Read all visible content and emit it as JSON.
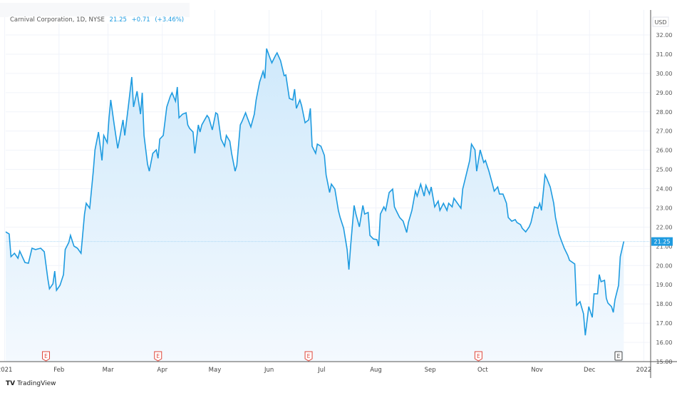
{
  "header": {
    "symbol": "Carnival Corporation, 1D, NYSE",
    "last": "21.25",
    "change": "+0.71",
    "change_pct": "(+3.46%)"
  },
  "brand": {
    "logo": "TV",
    "name": "TradingView"
  },
  "colors": {
    "line": "#1e9be0",
    "fill_top": "#cfe9fb",
    "fill_bottom": "#f4f9fe",
    "earnings": "#e0463a",
    "earnings_upcoming": "#444444",
    "price_label_bg": "#1e9be0"
  },
  "chart_data": {
    "type": "area",
    "title": "",
    "currency": "USD",
    "ylim": [
      15,
      32
    ],
    "yticks": [
      "15.00",
      "16.00",
      "17.00",
      "18.00",
      "19.00",
      "20.00",
      "21.00",
      "22.00",
      "23.00",
      "24.00",
      "25.00",
      "26.00",
      "27.00",
      "28.00",
      "29.00",
      "30.00",
      "31.00",
      "32.00"
    ],
    "xticks": [
      {
        "label": "2021",
        "date": "2021-01-01"
      },
      {
        "label": "Feb",
        "date": "2021-02-01"
      },
      {
        "label": "Mar",
        "date": "2021-03-01"
      },
      {
        "label": "Apr",
        "date": "2021-04-01"
      },
      {
        "label": "May",
        "date": "2021-05-01"
      },
      {
        "label": "Jun",
        "date": "2021-06-01"
      },
      {
        "label": "Jul",
        "date": "2021-07-01"
      },
      {
        "label": "Aug",
        "date": "2021-08-01"
      },
      {
        "label": "Sep",
        "date": "2021-09-01"
      },
      {
        "label": "Oct",
        "date": "2021-10-01"
      },
      {
        "label": "Nov",
        "date": "2021-11-01"
      },
      {
        "label": "Dec",
        "date": "2021-12-01"
      },
      {
        "label": "2022",
        "date": "2022-01-01"
      }
    ],
    "last_price_label": "21.25",
    "grid": true,
    "earnings_markers": [
      {
        "label": "E",
        "date": "2021-01-27",
        "status": "reported"
      },
      {
        "label": "E",
        "date": "2021-04-01",
        "status": "reported"
      },
      {
        "label": "E",
        "date": "2021-06-26",
        "status": "reported"
      },
      {
        "label": "E",
        "date": "2021-10-01",
        "status": "reported"
      },
      {
        "label": "E",
        "date": "2021-12-20",
        "status": "upcoming"
      }
    ],
    "series": [
      {
        "x": [
          "2021-01-04",
          "2021-01-06",
          "2021-01-07",
          "2021-01-09",
          "2021-01-11",
          "2021-01-12",
          "2021-01-15",
          "2021-01-17",
          "2021-01-19",
          "2021-01-21",
          "2021-01-24",
          "2021-01-26",
          "2021-01-28",
          "2021-01-29",
          "2021-01-31",
          "2021-02-01",
          "2021-02-02",
          "2021-02-04",
          "2021-02-06",
          "2021-02-07",
          "2021-02-09",
          "2021-02-10",
          "2021-02-12",
          "2021-02-14",
          "2021-02-16",
          "2021-02-18",
          "2021-02-19",
          "2021-02-21",
          "2021-02-23",
          "2021-02-24",
          "2021-02-26",
          "2021-02-28",
          "2021-03-01",
          "2021-03-03",
          "2021-03-04",
          "2021-03-05",
          "2021-03-07",
          "2021-03-09",
          "2021-03-10",
          "2021-03-12",
          "2021-03-13",
          "2021-03-15",
          "2021-03-17",
          "2021-03-18",
          "2021-03-20",
          "2021-03-22",
          "2021-03-23",
          "2021-03-24",
          "2021-03-26",
          "2021-03-27",
          "2021-03-29",
          "2021-03-31",
          "2021-04-01",
          "2021-04-02",
          "2021-04-04",
          "2021-04-06",
          "2021-04-08",
          "2021-04-09",
          "2021-04-11",
          "2021-04-12",
          "2021-04-13",
          "2021-04-15",
          "2021-04-17",
          "2021-04-18",
          "2021-04-19",
          "2021-04-21",
          "2021-04-22",
          "2021-04-24",
          "2021-04-25",
          "2021-04-26",
          "2021-04-29",
          "2021-04-30",
          "2021-05-02",
          "2021-05-04",
          "2021-05-05",
          "2021-05-07",
          "2021-05-09",
          "2021-05-10",
          "2021-05-12",
          "2021-05-13",
          "2021-05-15",
          "2021-05-16",
          "2021-05-18",
          "2021-05-19",
          "2021-05-21",
          "2021-05-22",
          "2021-05-24",
          "2021-05-26",
          "2021-05-27",
          "2021-05-29",
          "2021-05-31",
          "2021-06-01",
          "2021-06-02",
          "2021-06-04",
          "2021-06-05",
          "2021-06-07",
          "2021-06-08",
          "2021-06-10",
          "2021-06-12",
          "2021-06-13",
          "2021-06-15",
          "2021-06-17",
          "2021-06-18",
          "2021-06-19",
          "2021-06-21",
          "2021-06-22",
          "2021-06-24",
          "2021-06-26",
          "2021-06-27",
          "2021-06-28",
          "2021-06-30",
          "2021-07-01",
          "2021-07-03",
          "2021-07-05",
          "2021-07-06",
          "2021-07-08",
          "2021-07-09",
          "2021-07-11",
          "2021-07-13",
          "2021-07-14",
          "2021-07-16",
          "2021-07-18",
          "2021-07-19",
          "2021-07-20",
          "2021-07-22",
          "2021-07-23",
          "2021-07-25",
          "2021-07-27",
          "2021-07-28",
          "2021-07-30",
          "2021-07-31",
          "2021-08-02",
          "2021-08-04",
          "2021-08-05",
          "2021-08-06",
          "2021-08-08",
          "2021-08-09",
          "2021-08-11",
          "2021-08-13",
          "2021-08-14",
          "2021-08-16",
          "2021-08-17",
          "2021-08-19",
          "2021-08-21",
          "2021-08-22",
          "2021-08-24",
          "2021-08-26",
          "2021-08-27",
          "2021-08-29",
          "2021-08-31",
          "2021-09-01",
          "2021-09-03",
          "2021-09-04",
          "2021-09-06",
          "2021-09-08",
          "2021-09-09",
          "2021-09-11",
          "2021-09-13",
          "2021-09-14",
          "2021-09-16",
          "2021-09-17",
          "2021-09-19",
          "2021-09-21",
          "2021-09-22",
          "2021-09-24",
          "2021-09-26",
          "2021-09-27",
          "2021-09-29",
          "2021-09-30",
          "2021-10-02",
          "2021-10-04",
          "2021-10-05",
          "2021-10-07",
          "2021-10-09",
          "2021-10-10",
          "2021-10-12",
          "2021-10-13",
          "2021-10-15",
          "2021-10-17",
          "2021-10-18",
          "2021-10-20",
          "2021-10-22",
          "2021-10-23",
          "2021-10-25",
          "2021-10-26",
          "2021-10-28",
          "2021-10-30",
          "2021-10-31",
          "2021-11-02",
          "2021-11-04",
          "2021-11-05",
          "2021-11-06",
          "2021-11-08",
          "2021-11-09",
          "2021-11-11",
          "2021-11-13",
          "2021-11-14",
          "2021-11-16",
          "2021-11-17",
          "2021-11-19",
          "2021-11-21",
          "2021-11-22",
          "2021-11-25",
          "2021-11-26",
          "2021-11-28",
          "2021-11-30",
          "2021-12-01",
          "2021-12-03",
          "2021-12-05",
          "2021-12-06",
          "2021-12-08",
          "2021-12-09",
          "2021-12-10",
          "2021-12-12",
          "2021-12-13",
          "2021-12-14",
          "2021-12-16",
          "2021-12-17",
          "2021-12-18",
          "2021-12-20",
          "2021-12-21",
          "2021-12-23"
        ],
        "y": [
          21.75,
          21.64,
          20.46,
          20.64,
          20.38,
          20.75,
          20.16,
          20.12,
          20.9,
          20.83,
          20.9,
          20.72,
          19.34,
          18.79,
          19.05,
          19.71,
          18.71,
          18.97,
          19.53,
          20.83,
          21.2,
          21.57,
          21.01,
          20.9,
          20.64,
          22.68,
          23.24,
          22.98,
          24.91,
          26.02,
          26.95,
          25.47,
          26.77,
          26.39,
          27.69,
          28.62,
          27.32,
          26.1,
          26.58,
          27.58,
          26.77,
          28.25,
          29.81,
          28.25,
          29.07,
          27.88,
          28.99,
          26.77,
          25.28,
          24.91,
          25.84,
          26.02,
          25.58,
          26.58,
          26.77,
          28.25,
          28.81,
          28.99,
          28.55,
          29.29,
          27.69,
          27.88,
          27.95,
          27.32,
          27.14,
          26.95,
          25.84,
          27.32,
          26.95,
          27.32,
          27.81,
          27.69,
          27.06,
          27.95,
          27.88,
          26.58,
          26.21,
          26.77,
          26.47,
          25.84,
          24.91,
          25.21,
          27.32,
          27.51,
          27.95,
          27.69,
          27.21,
          27.88,
          28.62,
          29.55,
          30.11,
          29.74,
          31.29,
          30.78,
          30.55,
          30.92,
          31.07,
          30.66,
          29.88,
          29.92,
          28.7,
          28.62,
          29.18,
          28.18,
          28.62,
          28.33,
          27.43,
          27.58,
          28.18,
          26.21,
          25.84,
          26.32,
          26.21,
          25.73,
          24.72,
          23.8,
          24.24,
          23.98,
          22.87,
          22.5,
          21.94,
          20.83,
          19.79,
          21.01,
          23.13,
          22.68,
          22.01,
          23.13,
          22.68,
          22.76,
          21.57,
          21.38,
          21.35,
          21.01,
          22.68,
          23.05,
          22.87,
          23.8,
          23.98,
          23.05,
          22.68,
          22.5,
          22.31,
          21.72,
          22.24,
          22.87,
          23.87,
          23.61,
          24.24,
          23.61,
          24.17,
          23.72,
          24.09,
          23.05,
          23.35,
          22.87,
          23.24,
          22.87,
          23.24,
          23.05,
          23.5,
          23.24,
          22.98,
          23.98,
          24.72,
          25.47,
          26.32,
          26.02,
          24.91,
          26.02,
          25.36,
          25.47,
          24.91,
          24.24,
          23.87,
          24.09,
          23.72,
          23.72,
          23.24,
          22.5,
          22.31,
          22.39,
          22.24,
          22.13,
          21.94,
          21.75,
          22.01,
          22.24,
          23.05,
          22.98,
          23.24,
          22.87,
          24.72,
          24.54,
          24.09,
          23.24,
          22.5,
          21.64,
          21.38,
          20.9,
          20.53,
          20.27,
          20.08,
          17.93,
          18.12,
          17.49,
          16.37,
          17.86,
          17.3,
          18.53,
          18.53,
          19.53,
          19.16,
          19.23,
          18.3,
          18.04,
          17.86,
          17.56,
          18.23,
          18.97,
          20.46,
          21.25
        ]
      }
    ]
  }
}
